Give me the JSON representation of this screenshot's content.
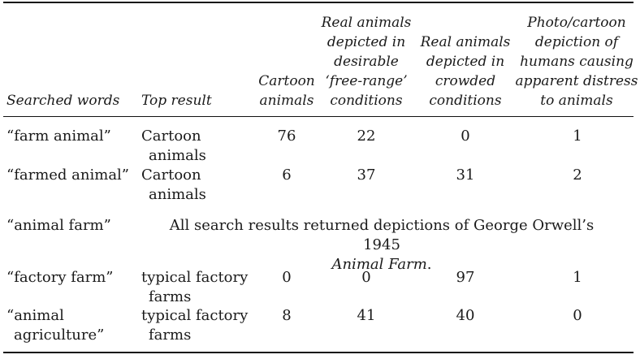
{
  "table": {
    "headers": {
      "searched": "Searched words",
      "top": "Top result",
      "cartoon_l1": "Cartoon",
      "cartoon_l2": "animals",
      "free_l1": "Real animals",
      "free_l2": "depicted in",
      "free_l3": "desirable",
      "free_l4": "‘free-range’",
      "free_l5": "conditions",
      "crowd_l1": "Real animals",
      "crowd_l2": "depicted in",
      "crowd_l3": "crowded",
      "crowd_l4": "conditions",
      "photo_l1": "Photo/cartoon",
      "photo_l2": "depiction of",
      "photo_l3": "humans causing",
      "photo_l4": "apparent distress",
      "photo_l5": "to animals"
    },
    "rows": [
      {
        "searched": "“farm animal”",
        "top_l1": "Cartoon",
        "top_l2": "animals",
        "cartoon": "76",
        "free": "22",
        "crowded": "0",
        "photo": "1"
      },
      {
        "searched": "“farmed animal”",
        "top_l1": "Cartoon",
        "top_l2": "animals",
        "cartoon": "6",
        "free": "37",
        "crowded": "31",
        "photo": "2"
      },
      {
        "searched": "“animal farm”",
        "note_a": "All search results returned depictions of George Orwell’s 1945",
        "note_b": "Animal Farm",
        "note_c": "."
      },
      {
        "searched": "“factory farm”",
        "top_l1": "typical factory",
        "top_l2": "farms",
        "cartoon": "0",
        "free": "0",
        "crowded": "97",
        "photo": "1"
      },
      {
        "searched_l1": "“animal",
        "searched_l2": "agriculture”",
        "top_l1": "typical factory",
        "top_l2": "farms",
        "cartoon": "8",
        "free": "41",
        "crowded": "40",
        "photo": "0"
      }
    ]
  }
}
